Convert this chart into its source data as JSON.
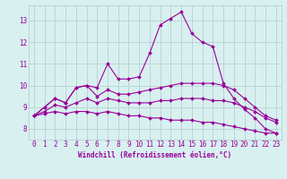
{
  "x_ticks": [
    0,
    1,
    2,
    3,
    4,
    5,
    6,
    7,
    8,
    9,
    10,
    11,
    12,
    13,
    14,
    15,
    16,
    17,
    18,
    19,
    20,
    21,
    22,
    23
  ],
  "line1": {
    "x": [
      0,
      1,
      2,
      3,
      4,
      5,
      6,
      7,
      8,
      9,
      10,
      11,
      12,
      13,
      14,
      15,
      16,
      17,
      18,
      19,
      20,
      21,
      22,
      23
    ],
    "y": [
      8.6,
      9.0,
      9.4,
      9.2,
      9.9,
      10.0,
      9.9,
      11.0,
      10.3,
      10.3,
      10.4,
      11.5,
      12.8,
      13.1,
      13.4,
      12.4,
      12.0,
      11.8,
      10.1,
      9.4,
      8.9,
      8.5,
      8.0,
      7.8
    ],
    "color": "#990099",
    "marker": "D",
    "ms": 2.0,
    "lw": 0.8
  },
  "line2": {
    "x": [
      0,
      1,
      2,
      3,
      4,
      5,
      6,
      7,
      8,
      9,
      10,
      11,
      12,
      13,
      14,
      15,
      16,
      17,
      18,
      19,
      20,
      21,
      22,
      23
    ],
    "y": [
      8.6,
      9.0,
      9.4,
      9.2,
      9.9,
      10.0,
      9.5,
      9.8,
      9.6,
      9.6,
      9.7,
      9.8,
      9.9,
      10.0,
      10.1,
      10.1,
      10.1,
      10.1,
      10.0,
      9.8,
      9.4,
      9.0,
      8.6,
      8.4
    ],
    "color": "#990099",
    "marker": "D",
    "ms": 2.0,
    "lw": 0.8
  },
  "line3": {
    "x": [
      0,
      1,
      2,
      3,
      4,
      5,
      6,
      7,
      8,
      9,
      10,
      11,
      12,
      13,
      14,
      15,
      16,
      17,
      18,
      19,
      20,
      21,
      22,
      23
    ],
    "y": [
      8.6,
      8.8,
      9.1,
      9.0,
      9.2,
      9.4,
      9.2,
      9.4,
      9.3,
      9.2,
      9.2,
      9.2,
      9.3,
      9.3,
      9.4,
      9.4,
      9.4,
      9.3,
      9.3,
      9.2,
      9.0,
      8.8,
      8.5,
      8.3
    ],
    "color": "#990099",
    "marker": "D",
    "ms": 2.0,
    "lw": 0.8
  },
  "line4": {
    "x": [
      0,
      1,
      2,
      3,
      4,
      5,
      6,
      7,
      8,
      9,
      10,
      11,
      12,
      13,
      14,
      15,
      16,
      17,
      18,
      19,
      20,
      21,
      22,
      23
    ],
    "y": [
      8.6,
      8.7,
      8.8,
      8.7,
      8.8,
      8.8,
      8.7,
      8.8,
      8.7,
      8.6,
      8.6,
      8.5,
      8.5,
      8.4,
      8.4,
      8.4,
      8.3,
      8.3,
      8.2,
      8.1,
      8.0,
      7.9,
      7.8,
      7.8
    ],
    "color": "#990099",
    "marker": "D",
    "ms": 2.0,
    "lw": 0.8
  },
  "bg_color": "#d8f0f0",
  "grid_color": "#b8d0d0",
  "line_color": "#990099",
  "ylabel_ticks": [
    8,
    9,
    10,
    11,
    12,
    13
  ],
  "ylim": [
    7.5,
    13.7
  ],
  "xlim": [
    -0.5,
    23.5
  ],
  "xlabel": "Windchill (Refroidissement éolien,°C)",
  "xlabel_fontsize": 5.5,
  "tick_fontsize": 5.5
}
